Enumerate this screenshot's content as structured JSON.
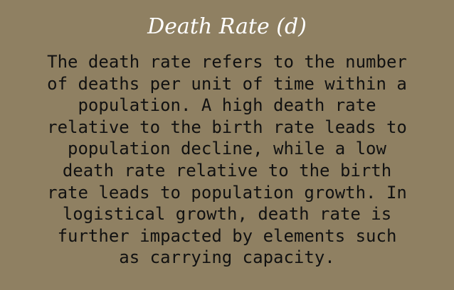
{
  "card": {
    "title": "Death Rate (d)",
    "lines": [
      "The death rate refers to the number",
      "of deaths per unit of time within a",
      "population. A high death rate",
      "relative to the birth rate leads to",
      "population decline, while a low",
      "death rate relative to the birth",
      "rate leads to population growth. In",
      "logistical growth, death rate is",
      "further impacted by elements such",
      "as carrying capacity."
    ]
  },
  "colors": {
    "background": "#8f8062",
    "title": "#ffffff",
    "text": "#111111"
  }
}
